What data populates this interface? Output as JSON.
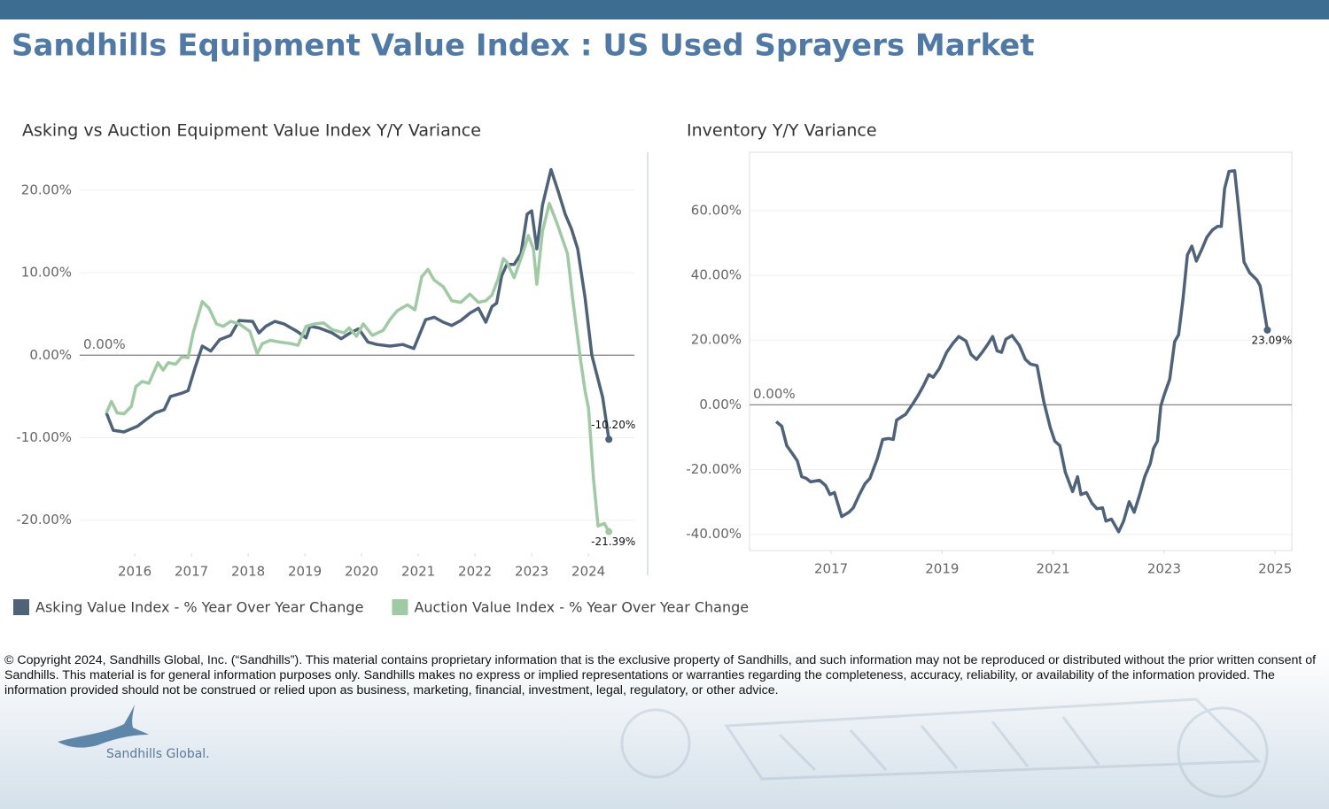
{
  "header": {
    "title": "Sandhills Equipment Value Index : US Used Sprayers Market"
  },
  "chart_data": [
    {
      "type": "line",
      "title": "Asking vs Auction Equipment Value Index Y/Y Variance",
      "xlim": [
        2015.03,
        2024.81
      ],
      "xticks": [
        2016,
        2017,
        2018,
        2019,
        2020,
        2021,
        2022,
        2023,
        2024
      ],
      "ylim": [
        -24,
        24.6
      ],
      "yticks": [
        {
          "value": -20,
          "label": "-20.00%"
        },
        {
          "value": -10,
          "label": "-10.00%"
        },
        {
          "value": 0,
          "label": "0.00%"
        },
        {
          "value": 10,
          "label": "10.00%"
        },
        {
          "value": 20,
          "label": "20.00%"
        }
      ],
      "grid": true,
      "reference_line": {
        "value": 0,
        "label": "0.00%"
      },
      "legend": "bottom",
      "series": [
        {
          "name": "Asking Value Index - % Year Over Year Change",
          "color": "#4e6379",
          "x": [
            2015.5,
            2015.62,
            2015.81,
            2016.05,
            2016.2,
            2016.36,
            2016.52,
            2016.63,
            2016.83,
            2016.94,
            2017.06,
            2017.19,
            2017.34,
            2017.5,
            2017.69,
            2017.84,
            2018.08,
            2018.19,
            2018.31,
            2018.47,
            2018.63,
            2018.86,
            2019.02,
            2019.09,
            2019.25,
            2019.48,
            2019.64,
            2019.8,
            2019.95,
            2020.11,
            2020.27,
            2020.5,
            2020.73,
            2020.92,
            2021.13,
            2021.28,
            2021.44,
            2021.59,
            2021.75,
            2021.91,
            2022.06,
            2022.19,
            2022.3,
            2022.38,
            2022.47,
            2022.56,
            2022.69,
            2022.81,
            2022.92,
            2023.0,
            2023.09,
            2023.19,
            2023.34,
            2023.47,
            2023.59,
            2023.7,
            2023.81,
            2023.94,
            2024.06,
            2024.25,
            2024.36
          ],
          "values": [
            -7.0,
            -9.1,
            -9.3,
            -8.6,
            -7.8,
            -7.0,
            -6.6,
            -5.0,
            -4.6,
            -4.3,
            -1.6,
            1.1,
            0.5,
            1.9,
            2.4,
            4.2,
            4.1,
            2.7,
            3.5,
            4.1,
            3.8,
            2.9,
            2.1,
            3.5,
            3.3,
            2.7,
            2.0,
            2.7,
            3.2,
            1.6,
            1.3,
            1.1,
            1.3,
            0.8,
            4.3,
            4.6,
            4.0,
            3.6,
            4.2,
            5.1,
            5.7,
            4.0,
            5.9,
            6.3,
            9.6,
            11.0,
            11.0,
            12.3,
            17.1,
            17.5,
            12.9,
            18.2,
            22.5,
            19.8,
            17.1,
            15.3,
            12.9,
            7.0,
            0.0,
            -5.1,
            -10.2
          ],
          "value_labels": [
            null,
            null,
            null,
            null,
            null,
            null,
            null,
            null,
            null,
            null,
            null,
            null,
            null,
            null,
            null,
            null,
            null,
            null,
            null,
            null,
            null,
            null,
            null,
            null,
            null,
            null,
            null,
            null,
            null,
            null,
            null,
            null,
            null,
            null,
            null,
            null,
            null,
            null,
            null,
            null,
            null,
            null,
            null,
            null,
            null,
            null,
            null,
            null,
            null,
            null,
            null,
            null,
            null,
            null,
            null,
            null,
            null,
            null,
            null,
            null,
            "-10.20%"
          ]
        },
        {
          "name": "Auction Value Index - % Year Over Year Change",
          "color": "#9fcaa4",
          "x": [
            2015.5,
            2015.59,
            2015.69,
            2015.81,
            2015.94,
            2016.02,
            2016.13,
            2016.25,
            2016.41,
            2016.5,
            2016.59,
            2016.72,
            2016.83,
            2016.94,
            2017.03,
            2017.19,
            2017.31,
            2017.44,
            2017.56,
            2017.69,
            2017.84,
            2018.03,
            2018.16,
            2018.25,
            2018.39,
            2018.55,
            2018.75,
            2018.88,
            2019.02,
            2019.17,
            2019.33,
            2019.48,
            2019.69,
            2019.78,
            2019.91,
            2020.03,
            2020.19,
            2020.38,
            2020.5,
            2020.63,
            2020.81,
            2020.94,
            2021.06,
            2021.17,
            2021.28,
            2021.44,
            2021.59,
            2021.75,
            2021.91,
            2022.06,
            2022.19,
            2022.3,
            2022.41,
            2022.5,
            2022.56,
            2022.69,
            2022.84,
            2022.94,
            2023.03,
            2023.09,
            2023.19,
            2023.31,
            2023.44,
            2023.53,
            2023.63,
            2023.72,
            2023.86,
            2023.94,
            2024.0,
            2024.09,
            2024.17,
            2024.28,
            2024.36
          ],
          "values": [
            -7.0,
            -5.6,
            -7.0,
            -7.1,
            -6.2,
            -3.8,
            -3.2,
            -3.4,
            -0.9,
            -1.8,
            -0.9,
            -1.1,
            -0.2,
            -0.3,
            2.7,
            6.5,
            5.7,
            3.8,
            3.5,
            4.1,
            3.8,
            2.9,
            0.2,
            1.4,
            1.8,
            1.6,
            1.4,
            1.2,
            3.5,
            3.8,
            3.9,
            3.1,
            2.7,
            3.3,
            2.3,
            3.8,
            2.4,
            3.0,
            4.3,
            5.4,
            6.1,
            5.5,
            9.5,
            10.4,
            9.1,
            8.3,
            6.6,
            6.4,
            7.4,
            6.4,
            6.6,
            7.3,
            9.3,
            11.7,
            11.3,
            9.4,
            12.3,
            14.5,
            12.9,
            8.6,
            15.0,
            18.4,
            16.1,
            14.3,
            12.3,
            7.0,
            -0.5,
            -4.3,
            -6.4,
            -15.0,
            -20.7,
            -20.4,
            -21.39
          ],
          "value_labels": [
            null,
            null,
            null,
            null,
            null,
            null,
            null,
            null,
            null,
            null,
            null,
            null,
            null,
            null,
            null,
            null,
            null,
            null,
            null,
            null,
            null,
            null,
            null,
            null,
            null,
            null,
            null,
            null,
            null,
            null,
            null,
            null,
            null,
            null,
            null,
            null,
            null,
            null,
            null,
            null,
            null,
            null,
            null,
            null,
            null,
            null,
            null,
            null,
            null,
            null,
            null,
            null,
            null,
            null,
            null,
            null,
            null,
            null,
            null,
            null,
            null,
            null,
            null,
            null,
            null,
            null,
            null,
            null,
            null,
            null,
            null,
            null,
            "-21.39%"
          ]
        }
      ]
    },
    {
      "type": "line",
      "title": "Inventory Y/Y Variance",
      "xlim": [
        2015.53,
        2025.3
      ],
      "xticks": [
        2017,
        2019,
        2021,
        2023,
        2025
      ],
      "ylim": [
        -45,
        78
      ],
      "yticks": [
        {
          "value": -40,
          "label": "-40.00%"
        },
        {
          "value": -20,
          "label": "-20.00%"
        },
        {
          "value": 0,
          "label": "0.00%"
        },
        {
          "value": 20,
          "label": "20.00%"
        },
        {
          "value": 40,
          "label": "40.00%"
        },
        {
          "value": 60,
          "label": "60.00%"
        }
      ],
      "grid": true,
      "reference_line": {
        "value": 0,
        "label": "0.00%"
      },
      "series": [
        {
          "color": "#4e6379",
          "x": [
            2016.01,
            2016.11,
            2016.2,
            2016.31,
            2016.39,
            2016.47,
            2016.55,
            2016.63,
            2016.79,
            2016.9,
            2016.98,
            2017.06,
            2017.19,
            2017.32,
            2017.4,
            2017.51,
            2017.61,
            2017.7,
            2017.83,
            2017.93,
            2018.04,
            2018.12,
            2018.18,
            2018.28,
            2018.34,
            2018.47,
            2018.57,
            2018.66,
            2018.76,
            2018.84,
            2018.95,
            2019.08,
            2019.19,
            2019.3,
            2019.43,
            2019.52,
            2019.62,
            2019.72,
            2019.83,
            2019.91,
            2019.99,
            2020.07,
            2020.15,
            2020.26,
            2020.39,
            2020.5,
            2020.59,
            2020.71,
            2020.83,
            2020.95,
            2021.03,
            2021.12,
            2021.22,
            2021.35,
            2021.44,
            2021.5,
            2021.6,
            2021.7,
            2021.79,
            2021.89,
            2021.95,
            2022.05,
            2022.18,
            2022.27,
            2022.37,
            2022.46,
            2022.56,
            2022.65,
            2022.75,
            2022.81,
            2022.88,
            2022.94,
            2023.0,
            2023.1,
            2023.19,
            2023.26,
            2023.34,
            2023.42,
            2023.5,
            2023.58,
            2023.67,
            2023.77,
            2023.87,
            2023.96,
            2024.03,
            2024.09,
            2024.17,
            2024.27,
            2024.33,
            2024.44,
            2024.54,
            2024.67,
            2024.73,
            2024.8,
            2024.86
          ],
          "values": [
            -5.2,
            -6.6,
            -12.6,
            -15.3,
            -17.3,
            -22.2,
            -22.7,
            -23.8,
            -23.3,
            -24.9,
            -27.7,
            -27.1,
            -34.5,
            -33.2,
            -31.8,
            -27.7,
            -24.4,
            -22.7,
            -16.7,
            -10.7,
            -10.4,
            -10.7,
            -4.7,
            -3.6,
            -3.0,
            0.3,
            3.0,
            5.8,
            9.3,
            8.5,
            11.2,
            16.2,
            18.9,
            21.1,
            19.7,
            15.6,
            14.0,
            16.2,
            18.9,
            21.1,
            16.7,
            16.2,
            20.3,
            21.4,
            18.4,
            14.0,
            12.6,
            12.1,
            1.1,
            -7.1,
            -11.2,
            -12.6,
            -20.8,
            -26.8,
            -22.2,
            -27.7,
            -27.1,
            -30.4,
            -32.1,
            -31.8,
            -35.9,
            -35.3,
            -39.2,
            -35.9,
            -29.9,
            -33.2,
            -27.7,
            -22.2,
            -18.1,
            -13.4,
            -11.2,
            -0.3,
            3.0,
            7.9,
            19.5,
            21.6,
            32.6,
            46.3,
            49.0,
            44.4,
            47.7,
            51.8,
            54.0,
            55.1,
            55.1,
            66.8,
            72.1,
            72.3,
            62.7,
            44.1,
            40.8,
            38.6,
            36.7,
            29.3,
            23.09
          ],
          "value_labels": [
            null,
            null,
            null,
            null,
            null,
            null,
            null,
            null,
            null,
            null,
            null,
            null,
            null,
            null,
            null,
            null,
            null,
            null,
            null,
            null,
            null,
            null,
            null,
            null,
            null,
            null,
            null,
            null,
            null,
            null,
            null,
            null,
            null,
            null,
            null,
            null,
            null,
            null,
            null,
            null,
            null,
            null,
            null,
            null,
            null,
            null,
            null,
            null,
            null,
            null,
            null,
            null,
            null,
            null,
            null,
            null,
            null,
            null,
            null,
            null,
            null,
            null,
            null,
            null,
            null,
            null,
            null,
            null,
            null,
            null,
            null,
            null,
            null,
            null,
            null,
            null,
            null,
            null,
            null,
            null,
            null,
            null,
            null,
            null,
            null,
            null,
            null,
            null,
            null,
            null,
            null,
            null,
            null,
            null,
            "23.09%"
          ]
        }
      ]
    }
  ],
  "footer": {
    "copyright": "© Copyright 2024, Sandhills Global, Inc. (“Sandhills”). This material contains proprietary information that is the exclusive property of Sandhills, and such information may not be reproduced or distributed without the prior written consent of Sandhills. This material is for general information purposes only. Sandhills makes no express or implied representations or warranties regarding the completeness, accuracy, reliability, or availability of the information provided. The information provided should not be construed or relied upon as business, marketing, financial, investment, legal, regulatory, or other advice.",
    "logo": "Sandhills Global."
  }
}
